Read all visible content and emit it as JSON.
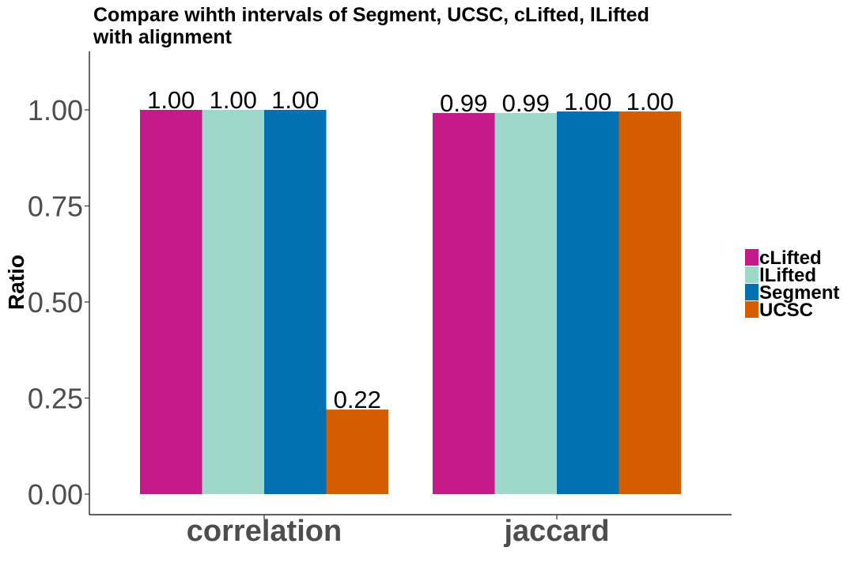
{
  "chart_data": {
    "type": "bar",
    "title_lines": [
      "Compare wihth intervals of Segment, UCSC, cLifted, lLifted",
      "with alignment"
    ],
    "xlabel": "",
    "ylabel": "Ratio",
    "ylim": [
      -0.05,
      1.14
    ],
    "yticks": [
      {
        "value": 0.0,
        "label": "0.00"
      },
      {
        "value": 0.25,
        "label": "0.25"
      },
      {
        "value": 0.5,
        "label": "0.50"
      },
      {
        "value": 0.75,
        "label": "0.75"
      },
      {
        "value": 1.0,
        "label": "1.00"
      }
    ],
    "categories": [
      "correlation",
      "jaccard"
    ],
    "series": [
      {
        "name": "cLifted",
        "color": "#C51B8A",
        "values": [
          1.0,
          0.992
        ],
        "labels": [
          "1.00",
          "0.99"
        ]
      },
      {
        "name": "lLifted",
        "color": "#9ED8CB",
        "values": [
          1.0,
          0.992
        ],
        "labels": [
          "1.00",
          "0.99"
        ]
      },
      {
        "name": "Segment",
        "color": "#0072B2",
        "values": [
          1.0,
          0.996
        ],
        "labels": [
          "1.00",
          "1.00"
        ]
      },
      {
        "name": "UCSC",
        "color": "#D55E00",
        "values": [
          0.22,
          0.996
        ],
        "labels": [
          "0.22",
          "1.00"
        ]
      }
    ],
    "grid": false,
    "legend_position": "right"
  }
}
